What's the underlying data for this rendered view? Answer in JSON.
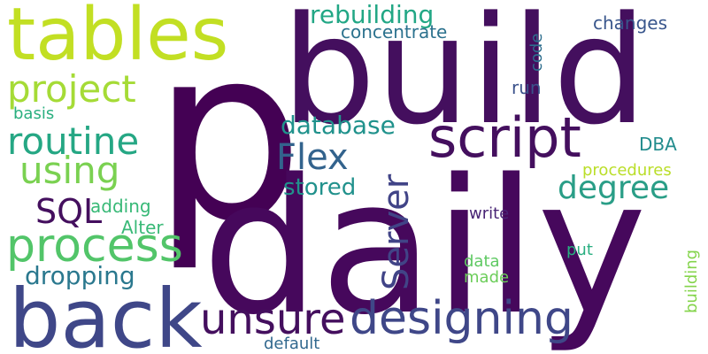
{
  "words": [
    {
      "text": "p",
      "color": "#440154",
      "rotated": false
    },
    {
      "text": "daily",
      "color": "#46085c",
      "rotated": false
    },
    {
      "text": "build",
      "color": "#440f5e",
      "rotated": false
    },
    {
      "text": "tables",
      "color": "#c2df23",
      "rotated": false
    },
    {
      "text": "back",
      "color": "#3f4788",
      "rotated": false
    },
    {
      "text": "script",
      "color": "#440f5e",
      "rotated": false
    },
    {
      "text": "designing",
      "color": "#3f4788",
      "rotated": false
    },
    {
      "text": "process",
      "color": "#52c569",
      "rotated": false
    },
    {
      "text": "unsure",
      "color": "#440f5e",
      "rotated": false
    },
    {
      "text": "routine",
      "color": "#25a784",
      "rotated": false
    },
    {
      "text": "project",
      "color": "#a5db36",
      "rotated": false
    },
    {
      "text": "using",
      "color": "#7ad151",
      "rotated": false
    },
    {
      "text": "Server",
      "color": "#414487",
      "rotated": true
    },
    {
      "text": "Flex",
      "color": "#33638d",
      "rotated": false
    },
    {
      "text": "degree",
      "color": "#2a9e87",
      "rotated": false
    },
    {
      "text": "SQL",
      "color": "#440f5e",
      "rotated": false
    },
    {
      "text": "database",
      "color": "#20928c",
      "rotated": false
    },
    {
      "text": "rebuilding",
      "color": "#22a785",
      "rotated": false
    },
    {
      "text": "dropping",
      "color": "#2a788e",
      "rotated": false
    },
    {
      "text": "stored",
      "color": "#21918c",
      "rotated": false
    },
    {
      "text": "concentrate",
      "color": "#2c728e",
      "rotated": false
    },
    {
      "text": "changes",
      "color": "#39568c",
      "rotated": false
    },
    {
      "text": "code",
      "color": "#2e6e8e",
      "rotated": true
    },
    {
      "text": "run",
      "color": "#3b528b",
      "rotated": false
    },
    {
      "text": "DBA",
      "color": "#228c8d",
      "rotated": false
    },
    {
      "text": "procedures",
      "color": "#bade28",
      "rotated": false
    },
    {
      "text": "basis",
      "color": "#29af7f",
      "rotated": false
    },
    {
      "text": "adding",
      "color": "#38b977",
      "rotated": false
    },
    {
      "text": "Alter",
      "color": "#39b977",
      "rotated": false
    },
    {
      "text": "write",
      "color": "#482475",
      "rotated": false
    },
    {
      "text": "put",
      "color": "#28ae80",
      "rotated": false
    },
    {
      "text": "data",
      "color": "#5ec962",
      "rotated": false
    },
    {
      "text": "made",
      "color": "#6ccd5a",
      "rotated": false
    },
    {
      "text": "building",
      "color": "#84d44b",
      "rotated": true
    },
    {
      "text": "default",
      "color": "#31688e",
      "rotated": false
    }
  ]
}
